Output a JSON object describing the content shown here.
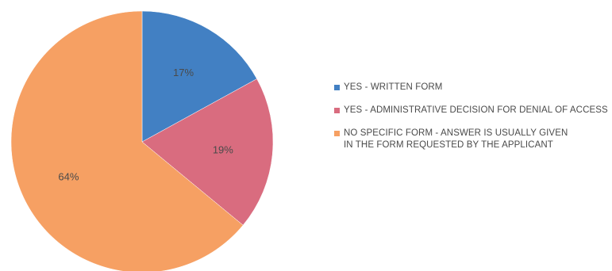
{
  "chart_data": {
    "type": "pie",
    "title": "",
    "slices": [
      {
        "label": "YES - WRITTEN FORM",
        "lines": [
          "YES - WRITTEN FORM"
        ],
        "value": 17,
        "display": "17%",
        "color": "#4280c3"
      },
      {
        "label": "YES - ADMINISTRATIVE DECISION FOR DENIAL OF ACCESS",
        "lines": [
          "YES - ADMINISTRATIVE DECISION FOR DENIAL OF ACCESS"
        ],
        "value": 19,
        "display": "19%",
        "color": "#d96c7f"
      },
      {
        "label": "NO SPECIFIC FORM - ANSWER IS USUALLY GIVEN IN THE FORM REQUESTED BY THE APPLICANT",
        "lines": [
          "NO SPECIFIC FORM - ANSWER IS USUALLY GIVEN",
          "IN THE FORM REQUESTED BY THE APPLICANT"
        ],
        "value": 64,
        "display": "64%",
        "color": "#f6a063"
      }
    ],
    "legend_position": "right"
  }
}
